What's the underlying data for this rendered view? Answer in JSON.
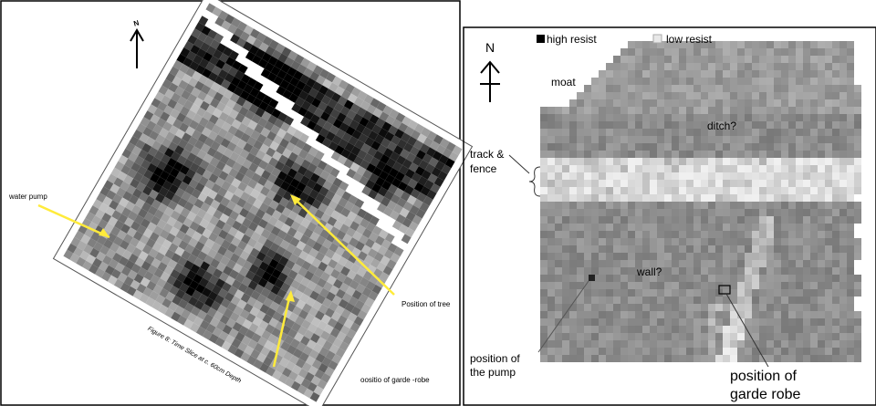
{
  "left_panel": {
    "north": "N",
    "caption": "Figure 8: Time Slice at c. 60cm Depth",
    "labels": {
      "water_pump": "water pump",
      "tree": "Position of tree",
      "garde_robe": "oositio of garde -robe"
    }
  },
  "right_panel": {
    "north": "N",
    "legend": {
      "high": "high resist",
      "low": "low resist"
    },
    "labels": {
      "moat": "moat",
      "ditch": "ditch?",
      "track": [
        "track &",
        "fence"
      ],
      "wall": "wall?",
      "pump": [
        "position of",
        "the pump"
      ],
      "garde_robe": [
        "position of",
        "garde robe"
      ]
    }
  }
}
